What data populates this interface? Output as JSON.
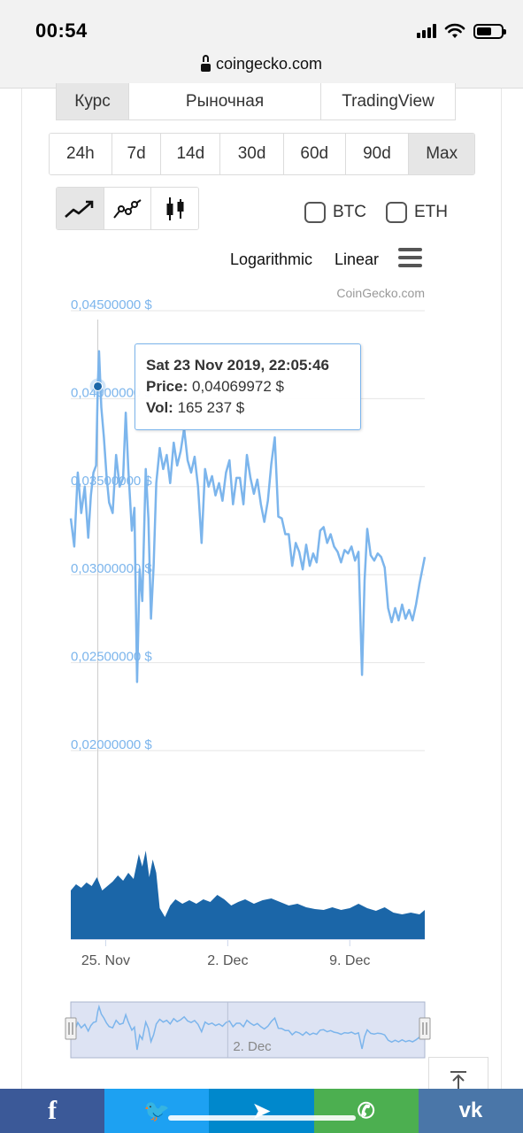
{
  "status_bar": {
    "time": "00:54"
  },
  "browser": {
    "url": "coingecko.com"
  },
  "tabs": [
    {
      "label": "Курс",
      "active": true
    },
    {
      "label": "Рыночная",
      "active": false
    },
    {
      "label": "TradingView",
      "active": false
    }
  ],
  "ranges": [
    {
      "label": "24h",
      "active": false
    },
    {
      "label": "7d",
      "active": false
    },
    {
      "label": "14d",
      "active": false
    },
    {
      "label": "30d",
      "active": false
    },
    {
      "label": "60d",
      "active": false
    },
    {
      "label": "90d",
      "active": false
    },
    {
      "label": "Max",
      "active": true
    }
  ],
  "chart_types": [
    {
      "icon": "line-chart-icon",
      "active": true
    },
    {
      "icon": "points-chart-icon",
      "active": false
    },
    {
      "icon": "candlestick-icon",
      "active": false
    }
  ],
  "compare": {
    "btc_label": "BTC",
    "eth_label": "ETH"
  },
  "scale": {
    "log_label": "Logarithmic",
    "linear_label": "Linear"
  },
  "credit": "CoinGecko.com",
  "tooltip": {
    "date": "Sat 23 Nov 2019, 22:05:46",
    "price_label": "Price:",
    "price_value": "0,04069972 $",
    "vol_label": "Vol:",
    "vol_value": "165 237 $"
  },
  "colors": {
    "line": "#7cb5ec",
    "volume": "#1b66a8",
    "axis_label": "#7cb5ec",
    "navigator_fill": "#d1d9ef"
  },
  "chart_data": {
    "type": "line",
    "price_axis": {
      "ticks": [
        "0,04500000 $",
        "0,04000000 $",
        "0,03500000 $",
        "0,03000000 $",
        "0,02500000 $",
        "0,02000000 $"
      ],
      "tick_values": [
        0.045,
        0.04,
        0.035,
        0.03,
        0.025,
        0.02
      ],
      "ylim": [
        0.02,
        0.045
      ]
    },
    "x_axis": {
      "ticks": [
        "25. Nov",
        "2. Dec",
        "9. Dec"
      ],
      "tick_days": [
        25,
        32,
        39
      ],
      "xlim": [
        23.0,
        43.3
      ]
    },
    "navigator_tick": "2. Dec",
    "price_series": [
      [
        23.0,
        0.0332
      ],
      [
        23.2,
        0.0316
      ],
      [
        23.4,
        0.0358
      ],
      [
        23.6,
        0.0335
      ],
      [
        23.8,
        0.035
      ],
      [
        24.0,
        0.0321
      ],
      [
        24.15,
        0.0345
      ],
      [
        24.3,
        0.0358
      ],
      [
        24.45,
        0.0362
      ],
      [
        24.55,
        0.0407
      ],
      [
        24.62,
        0.0427
      ],
      [
        24.75,
        0.0395
      ],
      [
        24.9,
        0.0378
      ],
      [
        25.05,
        0.0356
      ],
      [
        25.2,
        0.0341
      ],
      [
        25.4,
        0.0335
      ],
      [
        25.6,
        0.0368
      ],
      [
        25.8,
        0.035
      ],
      [
        26.0,
        0.0355
      ],
      [
        26.15,
        0.0392
      ],
      [
        26.3,
        0.036
      ],
      [
        26.5,
        0.0325
      ],
      [
        26.65,
        0.0338
      ],
      [
        26.8,
        0.0239
      ],
      [
        26.95,
        0.0303
      ],
      [
        27.1,
        0.0285
      ],
      [
        27.3,
        0.036
      ],
      [
        27.45,
        0.0332
      ],
      [
        27.6,
        0.0275
      ],
      [
        27.75,
        0.0305
      ],
      [
        27.9,
        0.0352
      ],
      [
        28.1,
        0.0372
      ],
      [
        28.3,
        0.036
      ],
      [
        28.5,
        0.0368
      ],
      [
        28.7,
        0.0352
      ],
      [
        28.9,
        0.0375
      ],
      [
        29.1,
        0.0362
      ],
      [
        29.3,
        0.037
      ],
      [
        29.5,
        0.0383
      ],
      [
        29.7,
        0.0365
      ],
      [
        29.9,
        0.0358
      ],
      [
        30.1,
        0.0367
      ],
      [
        30.3,
        0.035
      ],
      [
        30.5,
        0.0318
      ],
      [
        30.7,
        0.036
      ],
      [
        30.9,
        0.035
      ],
      [
        31.1,
        0.0356
      ],
      [
        31.3,
        0.0345
      ],
      [
        31.5,
        0.0352
      ],
      [
        31.7,
        0.0342
      ],
      [
        31.9,
        0.0358
      ],
      [
        32.1,
        0.0365
      ],
      [
        32.3,
        0.034
      ],
      [
        32.5,
        0.0355
      ],
      [
        32.7,
        0.0355
      ],
      [
        32.9,
        0.034
      ],
      [
        33.1,
        0.0368
      ],
      [
        33.3,
        0.0355
      ],
      [
        33.5,
        0.0346
      ],
      [
        33.7,
        0.0354
      ],
      [
        33.9,
        0.034
      ],
      [
        34.1,
        0.033
      ],
      [
        34.3,
        0.0342
      ],
      [
        34.5,
        0.0363
      ],
      [
        34.7,
        0.0378
      ],
      [
        34.9,
        0.0333
      ],
      [
        35.1,
        0.0332
      ],
      [
        35.3,
        0.0323
      ],
      [
        35.5,
        0.0323
      ],
      [
        35.7,
        0.0305
      ],
      [
        35.9,
        0.0318
      ],
      [
        36.1,
        0.0313
      ],
      [
        36.3,
        0.0303
      ],
      [
        36.5,
        0.0317
      ],
      [
        36.7,
        0.0305
      ],
      [
        36.9,
        0.0312
      ],
      [
        37.1,
        0.0307
      ],
      [
        37.3,
        0.0325
      ],
      [
        37.5,
        0.0327
      ],
      [
        37.7,
        0.0318
      ],
      [
        37.9,
        0.0323
      ],
      [
        38.1,
        0.0316
      ],
      [
        38.3,
        0.0313
      ],
      [
        38.5,
        0.0307
      ],
      [
        38.7,
        0.0314
      ],
      [
        38.9,
        0.0312
      ],
      [
        39.1,
        0.0316
      ],
      [
        39.3,
        0.0308
      ],
      [
        39.5,
        0.0313
      ],
      [
        39.7,
        0.0243
      ],
      [
        39.85,
        0.0297
      ],
      [
        40.0,
        0.0326
      ],
      [
        40.2,
        0.0311
      ],
      [
        40.4,
        0.0308
      ],
      [
        40.6,
        0.0312
      ],
      [
        40.8,
        0.031
      ],
      [
        41.0,
        0.0304
      ],
      [
        41.2,
        0.0281
      ],
      [
        41.4,
        0.0273
      ],
      [
        41.6,
        0.0281
      ],
      [
        41.8,
        0.0274
      ],
      [
        42.0,
        0.0283
      ],
      [
        42.2,
        0.0275
      ],
      [
        42.4,
        0.028
      ],
      [
        42.6,
        0.0274
      ],
      [
        42.8,
        0.0283
      ],
      [
        43.0,
        0.0295
      ],
      [
        43.3,
        0.031
      ]
    ],
    "volume_series": [
      [
        23.0,
        0.55
      ],
      [
        23.3,
        0.62
      ],
      [
        23.6,
        0.58
      ],
      [
        23.9,
        0.64
      ],
      [
        24.2,
        0.6
      ],
      [
        24.5,
        0.7
      ],
      [
        24.8,
        0.55
      ],
      [
        25.1,
        0.6
      ],
      [
        25.4,
        0.65
      ],
      [
        25.7,
        0.72
      ],
      [
        26.0,
        0.66
      ],
      [
        26.3,
        0.75
      ],
      [
        26.6,
        0.68
      ],
      [
        26.9,
        0.96
      ],
      [
        27.1,
        0.82
      ],
      [
        27.3,
        1.0
      ],
      [
        27.5,
        0.7
      ],
      [
        27.7,
        0.9
      ],
      [
        27.9,
        0.75
      ],
      [
        28.1,
        0.35
      ],
      [
        28.4,
        0.25
      ],
      [
        28.7,
        0.38
      ],
      [
        29.0,
        0.45
      ],
      [
        29.4,
        0.4
      ],
      [
        29.8,
        0.44
      ],
      [
        30.2,
        0.4
      ],
      [
        30.6,
        0.45
      ],
      [
        31.0,
        0.42
      ],
      [
        31.4,
        0.5
      ],
      [
        31.8,
        0.45
      ],
      [
        32.2,
        0.38
      ],
      [
        32.6,
        0.42
      ],
      [
        33.0,
        0.45
      ],
      [
        33.5,
        0.4
      ],
      [
        34.0,
        0.44
      ],
      [
        34.5,
        0.46
      ],
      [
        35.0,
        0.42
      ],
      [
        35.5,
        0.38
      ],
      [
        36.0,
        0.4
      ],
      [
        36.5,
        0.36
      ],
      [
        37.0,
        0.34
      ],
      [
        37.5,
        0.33
      ],
      [
        38.0,
        0.36
      ],
      [
        38.5,
        0.33
      ],
      [
        39.0,
        0.35
      ],
      [
        39.5,
        0.4
      ],
      [
        40.0,
        0.35
      ],
      [
        40.5,
        0.32
      ],
      [
        41.0,
        0.36
      ],
      [
        41.5,
        0.3
      ],
      [
        42.0,
        0.28
      ],
      [
        42.5,
        0.3
      ],
      [
        43.0,
        0.28
      ],
      [
        43.3,
        0.33
      ]
    ],
    "hover_point": [
      24.55,
      0.0407
    ]
  },
  "share": [
    {
      "name": "facebook",
      "glyph": "f",
      "color": "#3b5998"
    },
    {
      "name": "twitter",
      "glyph": "🐦",
      "color": "#1da1f2"
    },
    {
      "name": "telegram",
      "glyph": "➤",
      "color": "#0088cc"
    },
    {
      "name": "whatsapp",
      "glyph": "✆",
      "color": "#4caf50"
    },
    {
      "name": "vk",
      "glyph": "vk",
      "color": "#4a76a8"
    }
  ]
}
